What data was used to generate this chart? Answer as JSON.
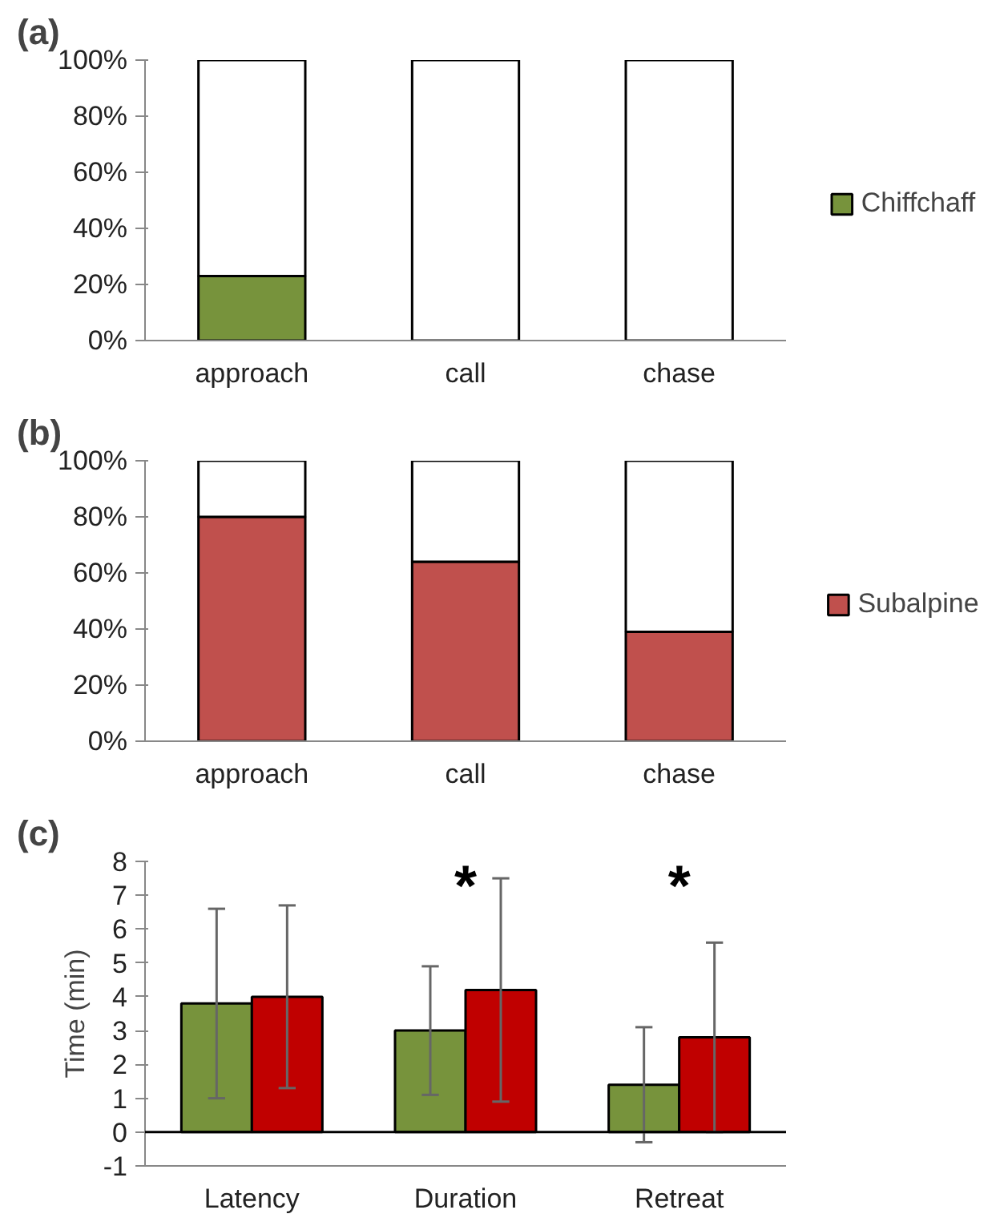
{
  "chart_data": [
    {
      "type": "bar",
      "title": "(a)",
      "stacked": true,
      "categories": [
        "approach",
        "call",
        "chase"
      ],
      "series": [
        {
          "name": "Chiffchaff",
          "color": "#77933c",
          "values": [
            23,
            0,
            0
          ]
        },
        {
          "color": "#ffffff",
          "values": [
            77,
            100,
            100
          ]
        }
      ],
      "ylim": [
        0,
        100
      ],
      "yticks": [
        {
          "value": 0,
          "label": "0%"
        },
        {
          "value": 20,
          "label": "20%"
        },
        {
          "value": 40,
          "label": "40%"
        },
        {
          "value": 60,
          "label": "60%"
        },
        {
          "value": 80,
          "label": "80%"
        },
        {
          "value": 100,
          "label": "100%"
        }
      ],
      "grid": false,
      "legend": "right"
    },
    {
      "type": "bar",
      "title": "(b)",
      "stacked": true,
      "categories": [
        "approach",
        "call",
        "chase"
      ],
      "series": [
        {
          "name": "Subalpine",
          "color": "#c0504d",
          "values": [
            80,
            64,
            39
          ]
        },
        {
          "color": "#ffffff",
          "values": [
            20,
            36,
            61
          ]
        }
      ],
      "ylim": [
        0,
        100
      ],
      "yticks": [
        {
          "value": 0,
          "label": "0%"
        },
        {
          "value": 20,
          "label": "20%"
        },
        {
          "value": 40,
          "label": "40%"
        },
        {
          "value": 60,
          "label": "60%"
        },
        {
          "value": 80,
          "label": "80%"
        },
        {
          "value": 100,
          "label": "100%"
        }
      ],
      "grid": false,
      "legend": "right"
    },
    {
      "type": "bar",
      "title": "(c)",
      "ylabel": "Time (min)",
      "categories": [
        "Latency",
        "Duration",
        "Retreat"
      ],
      "series": [
        {
          "color": "#77933c",
          "values": [
            3.8,
            3.0,
            1.4
          ],
          "errors": [
            [
              1.0,
              6.6
            ],
            [
              1.1,
              4.9
            ],
            [
              -0.3,
              3.1
            ]
          ]
        },
        {
          "color": "#c00000",
          "values": [
            4.0,
            4.2,
            2.8
          ],
          "errors": [
            [
              1.3,
              6.7
            ],
            [
              0.9,
              7.5
            ],
            [
              0.0,
              5.6
            ]
          ]
        }
      ],
      "ylim": [
        -1,
        8
      ],
      "yticks": [
        -1,
        0,
        1,
        2,
        3,
        4,
        5,
        6,
        7,
        8
      ],
      "ref_lines": [
        {
          "axis": "y",
          "value": 0,
          "color": "#000000"
        }
      ],
      "annotations": [
        "*",
        "*"
      ],
      "grid": false
    }
  ]
}
